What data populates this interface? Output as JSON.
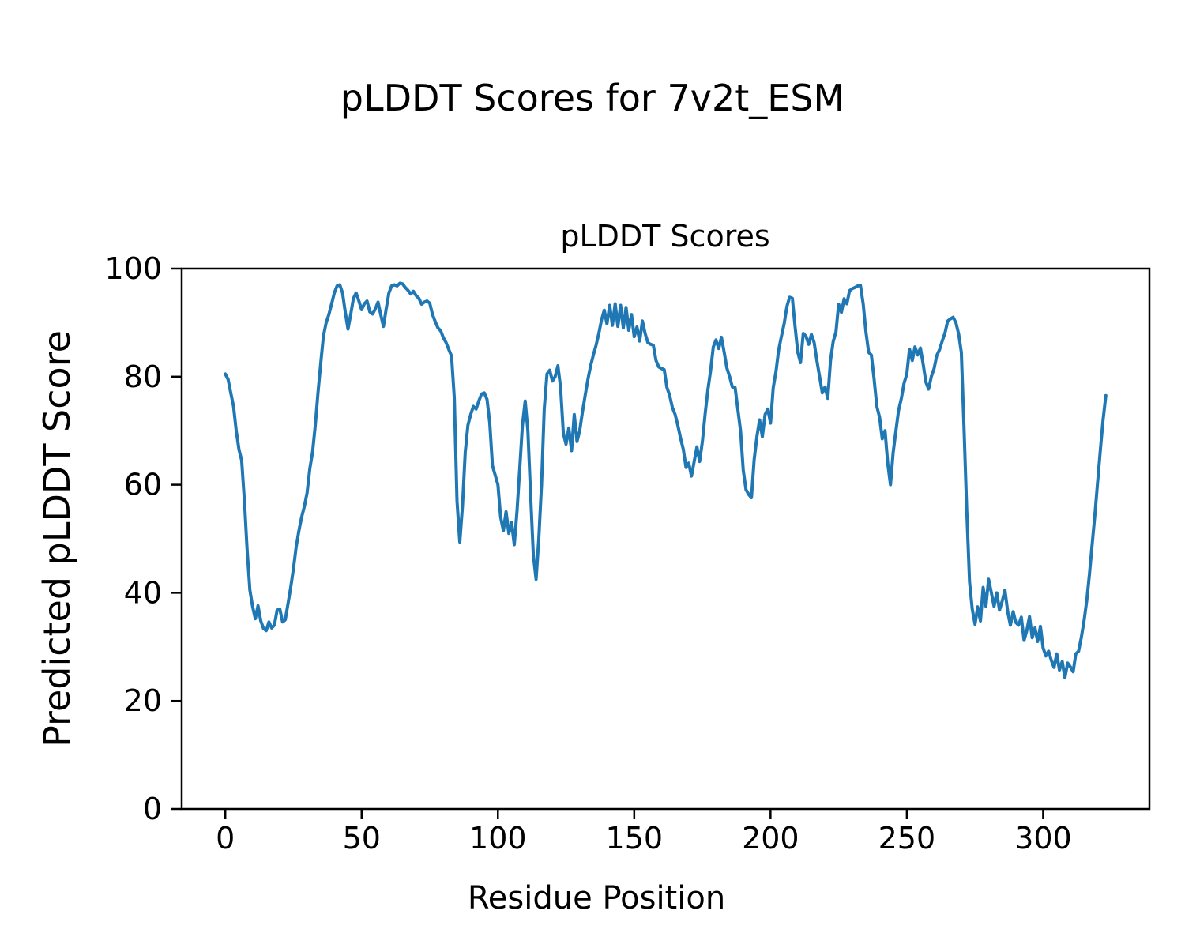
{
  "figure": {
    "suptitle": "pLDDT Scores for 7v2t_ESM",
    "background": "#ffffff"
  },
  "chart_data": {
    "type": "line",
    "title": "pLDDT Scores",
    "xlabel": "Residue Position",
    "ylabel": "Predicted pLDDT Score",
    "xlim": [
      -16,
      339
    ],
    "ylim": [
      0,
      100
    ],
    "xticks": [
      0,
      50,
      100,
      150,
      200,
      250,
      300
    ],
    "yticks": [
      0,
      20,
      40,
      60,
      80,
      100
    ],
    "grid": false,
    "legend_position": "none",
    "line_color": "#1f77b4",
    "line_width": 4,
    "axis_color": "#000000",
    "series": [
      {
        "name": "pLDDT",
        "x_start": 0,
        "x_step": 1,
        "values": [
          80.5,
          79.5,
          77,
          74.5,
          70,
          66.5,
          64.5,
          57,
          48,
          40.5,
          37.5,
          35.2,
          37.6,
          34.8,
          33.4,
          33,
          34.6,
          33.5,
          34,
          36.8,
          37,
          34.6,
          35,
          38,
          41,
          44.5,
          48.5,
          51.5,
          54,
          56,
          58.5,
          63,
          66,
          71,
          77,
          82.5,
          87.5,
          90,
          91.5,
          93.5,
          95.5,
          96.8,
          97,
          95.5,
          92,
          88.8,
          91.5,
          94.5,
          95.5,
          94,
          92.4,
          93.5,
          94,
          92,
          91.6,
          92.5,
          93.8,
          91.5,
          89.3,
          92.5,
          95.5,
          96.8,
          97,
          96.8,
          97.3,
          97.2,
          96.5,
          96,
          95.3,
          95.8,
          95,
          94.5,
          93.4,
          93.8,
          94,
          93.6,
          91.5,
          90.2,
          89,
          88.5,
          87.2,
          86.3,
          85,
          83.8,
          76,
          57,
          49.4,
          56,
          66,
          71,
          73,
          74.5,
          74,
          75.5,
          76.8,
          77,
          75.8,
          71.5,
          63.5,
          61.8,
          60,
          54,
          51.5,
          55,
          51,
          53,
          48.9,
          55,
          63,
          71,
          75.5,
          70,
          58,
          47,
          42.5,
          50,
          60,
          74,
          80.5,
          81.2,
          79.2,
          80,
          82,
          78,
          69.5,
          67.5,
          70.5,
          66.3,
          73,
          68,
          70,
          73.5,
          76.5,
          79.5,
          82,
          84,
          85.8,
          88,
          90.5,
          92.3,
          89.8,
          93.2,
          89.5,
          93.5,
          89.3,
          93.2,
          89,
          92.8,
          88.6,
          91.5,
          87.4,
          89.2,
          86.6,
          90.3,
          88,
          86.3,
          86,
          85.8,
          83,
          81.8,
          81.5,
          81.3,
          78,
          76.5,
          74.3,
          73,
          71,
          68.6,
          66.6,
          63.2,
          64,
          61.6,
          64.3,
          67,
          64.3,
          68,
          73,
          77.5,
          81,
          85.5,
          86.8,
          85.2,
          87.3,
          84.5,
          81.6,
          80,
          78.1,
          78,
          74,
          70,
          62.7,
          59.1,
          58.2,
          57.6,
          64.6,
          68.9,
          72,
          68.9,
          73,
          74,
          71.4,
          78,
          81,
          85,
          87.5,
          89.8,
          93,
          94.7,
          94.5,
          89.3,
          84.5,
          82.6,
          88,
          87.5,
          86,
          87.8,
          86.3,
          83,
          80,
          77,
          78.1,
          76,
          83,
          86.5,
          88.3,
          93.4,
          91.9,
          94.4,
          93.5,
          95.9,
          96.3,
          96.5,
          96.8,
          96.9,
          93.4,
          88.3,
          84.5,
          84,
          79.5,
          74.5,
          72.5,
          68.5,
          70,
          64,
          60,
          66,
          70,
          73.8,
          76,
          78.8,
          80.5,
          85.1,
          83,
          85.5,
          84,
          85.3,
          82.3,
          79,
          77.7,
          80,
          81.5,
          83.9,
          85,
          86.6,
          88.1,
          90.3,
          90.7,
          91,
          90,
          87.9,
          84.5,
          70,
          55,
          42,
          37,
          34.2,
          37.4,
          34.8,
          41,
          37.5,
          42.5,
          40,
          37.5,
          40,
          36.8,
          38.5,
          40.5,
          36.5,
          34,
          36.5,
          34.5,
          34,
          35.5,
          31.2,
          33,
          35.6,
          31.7,
          33.5,
          31,
          33.8,
          29.8,
          28.3,
          29.2,
          27.5,
          26.2,
          28.7,
          25.7,
          27.3,
          24.3,
          27,
          26.3,
          25.4,
          28.7,
          29.2,
          31.7,
          34.8,
          38.5,
          43.5,
          49,
          54.5,
          60.5,
          66.5,
          72,
          76.5
        ]
      }
    ]
  }
}
